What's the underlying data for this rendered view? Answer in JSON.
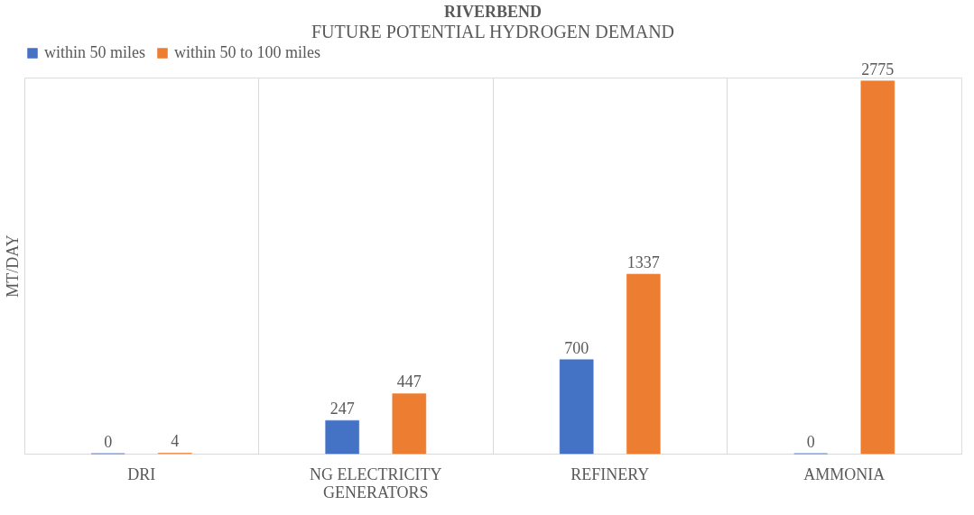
{
  "chart_data": {
    "type": "bar",
    "title": "RIVERBEND",
    "subtitle": "FUTURE POTENTIAL HYDROGEN DEMAND",
    "ylabel": "MT/DAY",
    "categories": [
      "DRI",
      "NG ELECTRICITY GENERATORS",
      "REFINERY",
      "AMMONIA"
    ],
    "series": [
      {
        "name": "within 50 miles",
        "color": "#4472c4",
        "values": [
          0,
          247,
          700,
          0
        ]
      },
      {
        "name": "within 50 to 100 miles",
        "color": "#ed7d31",
        "values": [
          4,
          447,
          1337,
          2775
        ]
      }
    ],
    "data_labels": true,
    "legend": "top",
    "grid": "x"
  }
}
